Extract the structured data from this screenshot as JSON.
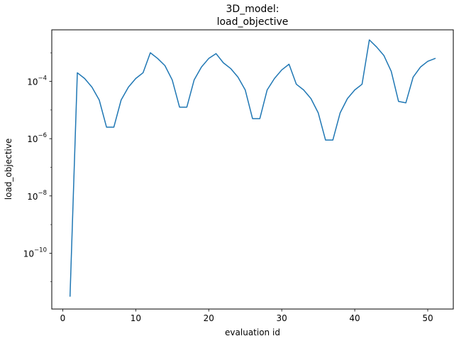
{
  "chart_data": {
    "type": "line",
    "title_lines": [
      "3D_model:",
      "load_objective"
    ],
    "xlabel": "evaluation id",
    "ylabel": "load_objective",
    "yscale": "log",
    "xlim": [
      -1.5,
      53.5
    ],
    "ylim_log10": [
      -11.95,
      -2.2
    ],
    "xticks": [
      0,
      10,
      20,
      30,
      40,
      50
    ],
    "yticks": [
      {
        "base": "10",
        "exp": "−10",
        "log10": -10
      },
      {
        "base": "10",
        "exp": "−8",
        "log10": -8
      },
      {
        "base": "10",
        "exp": "−6",
        "log10": -6
      },
      {
        "base": "10",
        "exp": "−4",
        "log10": -4
      }
    ],
    "grid": false,
    "legend": "none",
    "series": [
      {
        "color": "#1f77b4",
        "x": [
          1,
          2,
          3,
          4,
          5,
          6,
          7,
          8,
          9,
          10,
          11,
          12,
          13,
          14,
          15,
          16,
          17,
          18,
          19,
          20,
          21,
          22,
          23,
          24,
          25,
          26,
          27,
          28,
          29,
          30,
          31,
          32,
          33,
          34,
          35,
          36,
          37,
          38,
          39,
          40,
          41,
          42,
          43,
          44,
          45,
          46,
          47,
          48,
          49,
          50,
          51
        ],
        "log10_y": [
          -11.5,
          -3.7,
          -3.9,
          -4.2,
          -4.65,
          -5.6,
          -5.6,
          -4.65,
          -4.2,
          -3.9,
          -3.7,
          -3.0,
          -3.2,
          -3.45,
          -3.95,
          -4.9,
          -4.9,
          -3.95,
          -3.5,
          -3.2,
          -3.03,
          -3.35,
          -3.55,
          -3.85,
          -4.3,
          -5.3,
          -5.3,
          -4.3,
          -3.9,
          -3.6,
          -3.4,
          -4.1,
          -4.3,
          -4.6,
          -5.1,
          -6.05,
          -6.05,
          -5.1,
          -4.6,
          -4.3,
          -4.1,
          -2.55,
          -2.8,
          -3.1,
          -3.65,
          -4.7,
          -4.75,
          -3.85,
          -3.5,
          -3.3,
          -3.2
        ]
      }
    ]
  }
}
